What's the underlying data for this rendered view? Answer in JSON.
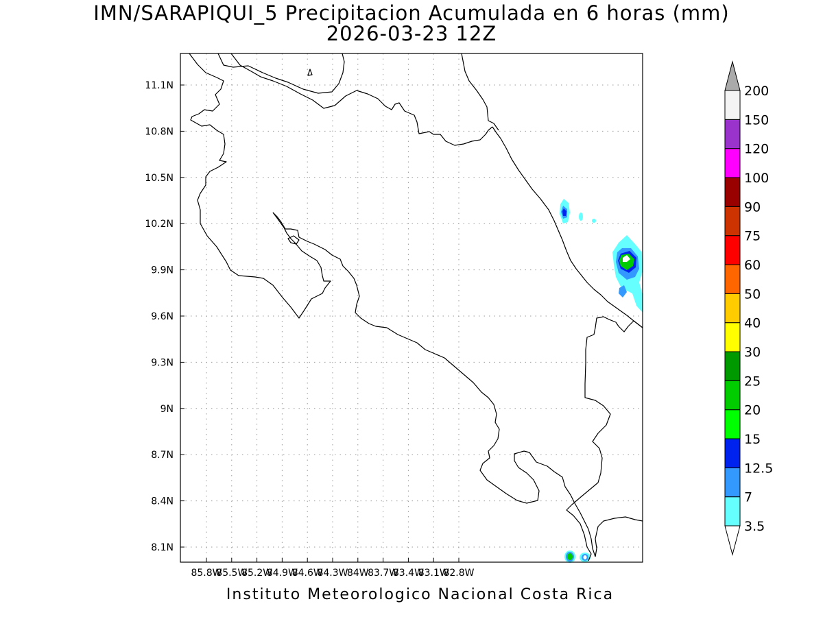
{
  "title": {
    "line1": "IMN/SARAPIQUI_5 Precipitacion Acumulada en 6 horas (mm)",
    "line2": "2026-03-23 12Z"
  },
  "footer": "Instituto Meteorologico Nacional Costa Rica",
  "map": {
    "lon_range": [
      -86.0,
      -83.0
    ],
    "lat_range": [
      8.0,
      11.3
    ],
    "x_ticks": [
      {
        "lon": -85.8,
        "label": "85.8W"
      },
      {
        "lon": -85.5,
        "label": "85.5W"
      },
      {
        "lon": -85.2,
        "label": "85.2W"
      },
      {
        "lon": -84.9,
        "label": "84.9W"
      },
      {
        "lon": -84.6,
        "label": "84.6W"
      },
      {
        "lon": -84.3,
        "label": "84.3W"
      },
      {
        "lon": -84.0,
        "label": "84W"
      },
      {
        "lon": -83.7,
        "label": "83.7W"
      },
      {
        "lon": -83.4,
        "label": "83.4W"
      },
      {
        "lon": -83.1,
        "label": "83.1W"
      },
      {
        "lon": -82.8,
        "label": "82.8W"
      }
    ],
    "y_ticks": [
      {
        "lat": 11.1,
        "label": "11.1N"
      },
      {
        "lat": 10.8,
        "label": "10.8N"
      },
      {
        "lat": 10.5,
        "label": "10.5N"
      },
      {
        "lat": 10.2,
        "label": "10.2N"
      },
      {
        "lat": 9.9,
        "label": "9.9N"
      },
      {
        "lat": 9.6,
        "label": "9.6N"
      },
      {
        "lat": 9.3,
        "label": "9.3N"
      },
      {
        "lat": 9.0,
        "label": "9N"
      },
      {
        "lat": 8.7,
        "label": "8.7N"
      },
      {
        "lat": 8.4,
        "label": "8.4N"
      },
      {
        "lat": 8.1,
        "label": "8.1N"
      }
    ],
    "grid": true
  },
  "colorbar": {
    "levels": [
      "3.5",
      "7",
      "12.5",
      "15",
      "20",
      "25",
      "30",
      "40",
      "50",
      "60",
      "75",
      "90",
      "100",
      "120",
      "150",
      "200"
    ],
    "colors": [
      "#66ffff",
      "#3399ff",
      "#0022ee",
      "#00ff00",
      "#00cc00",
      "#009900",
      "#ffff00",
      "#ffcc00",
      "#ff6600",
      "#ff0000",
      "#cc3300",
      "#990000",
      "#ff00ff",
      "#9933cc",
      "#f4f4f4"
    ],
    "over_color": "#aaaaaa",
    "under_color": "#ffffff"
  }
}
